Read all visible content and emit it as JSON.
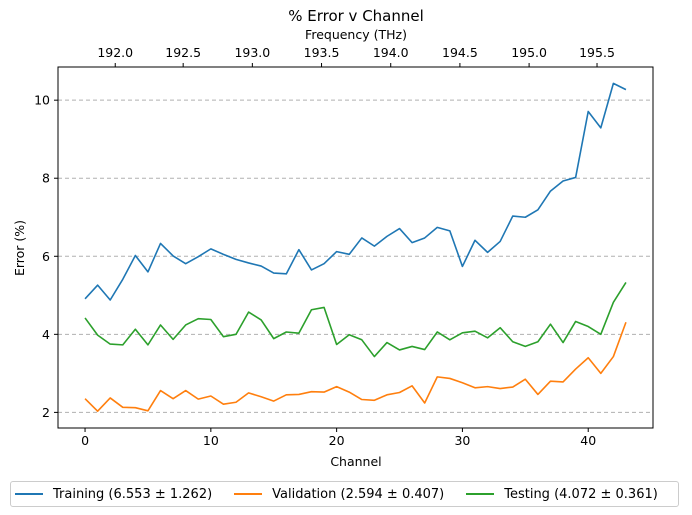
{
  "chart_data": {
    "type": "line",
    "title": "% Error v Channel",
    "xlabel": "Channel",
    "ylabel": "Error (%)",
    "top_axis_label": "Frequency (THz)",
    "xlim": [
      -2.15,
      45.15
    ],
    "ylim": [
      1.6,
      10.85
    ],
    "x_ticks": [
      0,
      10,
      20,
      30,
      40
    ],
    "y_ticks": [
      2,
      4,
      6,
      8,
      10
    ],
    "top_ticks": [
      {
        "label": "192.0",
        "channel": 2.4
      },
      {
        "label": "192.5",
        "channel": 7.8
      },
      {
        "label": "193.0",
        "channel": 13.3
      },
      {
        "label": "193.5",
        "channel": 18.8
      },
      {
        "label": "194.0",
        "channel": 24.3
      },
      {
        "label": "194.5",
        "channel": 29.8
      },
      {
        "label": "195.0",
        "channel": 35.3
      },
      {
        "label": "195.5",
        "channel": 40.7
      }
    ],
    "grid": {
      "y": true,
      "x": false,
      "style": "dashed"
    },
    "legend_position": "bottom",
    "x": [
      0,
      1,
      2,
      3,
      4,
      5,
      6,
      7,
      8,
      9,
      10,
      11,
      12,
      13,
      14,
      15,
      16,
      17,
      18,
      19,
      20,
      21,
      22,
      23,
      24,
      25,
      26,
      27,
      28,
      29,
      30,
      31,
      32,
      33,
      34,
      35,
      36,
      37,
      38,
      39,
      40,
      41,
      42,
      43
    ],
    "series": [
      {
        "name": "Training (6.553 ± 1.262)",
        "color": "#1f77b4",
        "values": [
          4.91,
          5.26,
          4.88,
          5.41,
          6.02,
          5.6,
          6.33,
          6.01,
          5.81,
          5.99,
          6.19,
          6.05,
          5.92,
          5.83,
          5.75,
          5.57,
          5.55,
          6.17,
          5.65,
          5.81,
          6.12,
          6.05,
          6.47,
          6.26,
          6.51,
          6.71,
          6.35,
          6.47,
          6.74,
          6.65,
          5.74,
          6.41,
          6.1,
          6.38,
          7.03,
          7.0,
          7.19,
          7.67,
          7.93,
          8.02,
          9.71,
          9.29,
          10.43,
          10.27
        ]
      },
      {
        "name": "Validation (2.594 ± 0.407)",
        "color": "#ff7f0e",
        "values": [
          2.35,
          2.03,
          2.37,
          2.13,
          2.12,
          2.04,
          2.56,
          2.35,
          2.56,
          2.34,
          2.42,
          2.21,
          2.26,
          2.5,
          2.4,
          2.29,
          2.45,
          2.46,
          2.53,
          2.52,
          2.66,
          2.52,
          2.33,
          2.31,
          2.45,
          2.51,
          2.68,
          2.24,
          2.91,
          2.87,
          2.76,
          2.63,
          2.66,
          2.61,
          2.65,
          2.85,
          2.46,
          2.8,
          2.78,
          3.11,
          3.4,
          3.0,
          3.43,
          4.31
        ]
      },
      {
        "name": "Testing (4.072 ± 0.361)",
        "color": "#2ca02c",
        "values": [
          4.42,
          3.98,
          3.75,
          3.73,
          4.13,
          3.73,
          4.24,
          3.87,
          4.24,
          4.4,
          4.38,
          3.94,
          4.0,
          4.57,
          4.37,
          3.89,
          4.06,
          4.03,
          4.63,
          4.69,
          3.74,
          3.99,
          3.86,
          3.43,
          3.79,
          3.6,
          3.69,
          3.61,
          4.06,
          3.86,
          4.04,
          4.08,
          3.91,
          4.17,
          3.81,
          3.69,
          3.81,
          4.26,
          3.79,
          4.33,
          4.2,
          4.0,
          4.82,
          5.33
        ]
      }
    ]
  }
}
